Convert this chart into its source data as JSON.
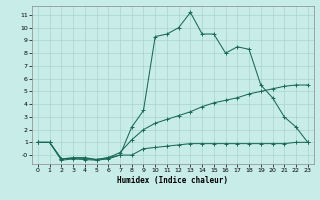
{
  "xlabel": "Humidex (Indice chaleur)",
  "bg_color": "#c8ece8",
  "grid_color": "#a8d4d0",
  "line_color": "#1a6858",
  "xlim": [
    -0.5,
    23.5
  ],
  "ylim": [
    -0.7,
    11.7
  ],
  "xticks": [
    0,
    1,
    2,
    3,
    4,
    5,
    6,
    7,
    8,
    9,
    10,
    11,
    12,
    13,
    14,
    15,
    16,
    17,
    18,
    19,
    20,
    21,
    22,
    23
  ],
  "yticks": [
    0,
    1,
    2,
    3,
    4,
    5,
    6,
    7,
    8,
    9,
    10,
    11
  ],
  "ytick_labels": [
    "-0",
    "1",
    "2",
    "3",
    "4",
    "5",
    "6",
    "7",
    "8",
    "9",
    "10",
    "11"
  ],
  "line1_x": [
    0,
    1,
    2,
    3,
    4,
    5,
    6,
    7,
    8,
    9,
    10,
    11,
    12,
    13,
    14,
    15,
    16,
    17,
    18,
    19,
    20,
    21,
    22,
    23
  ],
  "line1_y": [
    1.0,
    1.0,
    -0.3,
    -0.2,
    -0.2,
    -0.35,
    -0.2,
    0.0,
    2.2,
    3.5,
    9.3,
    9.5,
    10.0,
    11.2,
    9.5,
    9.5,
    8.0,
    8.5,
    8.3,
    5.5,
    4.5,
    3.0,
    2.2,
    1.0
  ],
  "line2_x": [
    0,
    1,
    2,
    3,
    4,
    5,
    6,
    7,
    8,
    9,
    10,
    11,
    12,
    13,
    14,
    15,
    16,
    17,
    18,
    19,
    20,
    21,
    22,
    23
  ],
  "line2_y": [
    1.0,
    1.0,
    -0.3,
    -0.25,
    -0.25,
    -0.35,
    -0.2,
    0.2,
    1.2,
    2.0,
    2.5,
    2.8,
    3.1,
    3.4,
    3.8,
    4.1,
    4.3,
    4.5,
    4.8,
    5.0,
    5.2,
    5.4,
    5.5,
    5.5
  ],
  "line3_x": [
    0,
    1,
    2,
    3,
    4,
    5,
    6,
    7,
    8,
    9,
    10,
    11,
    12,
    13,
    14,
    15,
    16,
    17,
    18,
    19,
    20,
    21,
    22,
    23
  ],
  "line3_y": [
    1.0,
    1.0,
    -0.4,
    -0.3,
    -0.35,
    -0.4,
    -0.3,
    0.0,
    0.0,
    0.5,
    0.6,
    0.7,
    0.8,
    0.9,
    0.9,
    0.9,
    0.9,
    0.9,
    0.9,
    0.9,
    0.9,
    0.9,
    1.0,
    1.0
  ]
}
